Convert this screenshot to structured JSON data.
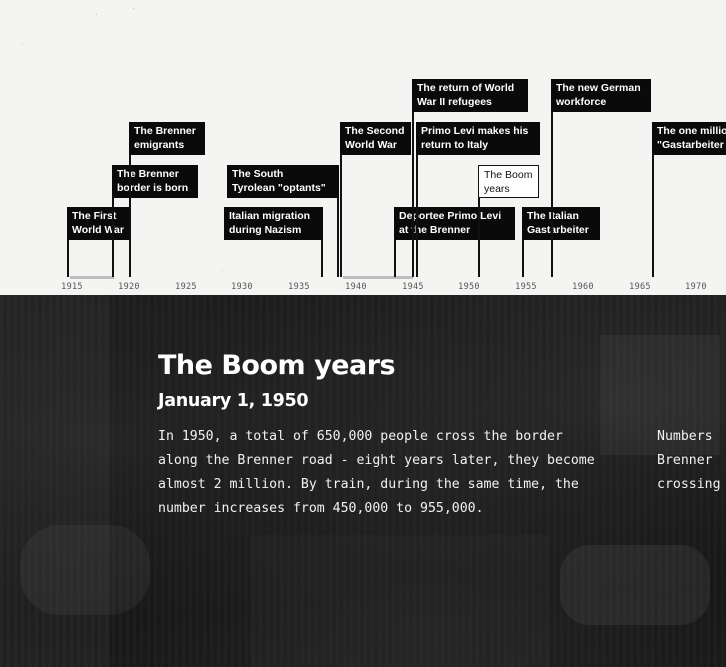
{
  "timeline": {
    "events": [
      {
        "id": "first-world-war",
        "label": "The First\nWorld War",
        "year": 1915
      },
      {
        "id": "brenner-border",
        "label": "The Brenner\nborder is born",
        "year": 1919
      },
      {
        "id": "brenner-emigrants",
        "label": "The Brenner\nemigrants",
        "year": 1920
      },
      {
        "id": "italian-migration-nazism",
        "label": "Italian migration\nduring Nazism",
        "year": 1929
      },
      {
        "id": "south-tyrolean-optants",
        "label": "The South\nTyrolean \"optants\"",
        "year": 1929
      },
      {
        "id": "second-world-war",
        "label": "The Second\nWorld War",
        "year": 1939
      },
      {
        "id": "deportee-primo-levi",
        "label": "Deportee Primo Levi\nat the Brenner",
        "year": 1944
      },
      {
        "id": "return-wwii-refugees",
        "label": "The return of World\nWar II refugees",
        "year": 1945
      },
      {
        "id": "primo-levi-return",
        "label": "Primo Levi makes his\nreturn to Italy",
        "year": 1945
      },
      {
        "id": "boom-years",
        "label": "The Boom\nyears",
        "year": 1950,
        "active": true
      },
      {
        "id": "italian-gastarbeiter",
        "label": "The Italian\nGastarbeiter",
        "year": 1955
      },
      {
        "id": "new-german-workforce",
        "label": "The new German\nworkforce",
        "year": 1957
      },
      {
        "id": "one-millionth-gastarbeiter",
        "label": "The one millio\n\"Gastarbeiter",
        "year": 1966
      }
    ],
    "ticks": [
      "1915",
      "1920",
      "1925",
      "1930",
      "1935",
      "1940",
      "1945",
      "1950",
      "1955",
      "1960",
      "1965",
      "1970"
    ]
  },
  "story": {
    "title": "The Boom years",
    "date": "January 1, 1950",
    "text": "In 1950, a total of 650,000 people cross the border along the Brenner road - eight years later, they become almost 2 million. By train, during the same time, the number increases from 450,000 to 955,000.",
    "next_text": "Numbers\nBrenner\ncrossing"
  }
}
